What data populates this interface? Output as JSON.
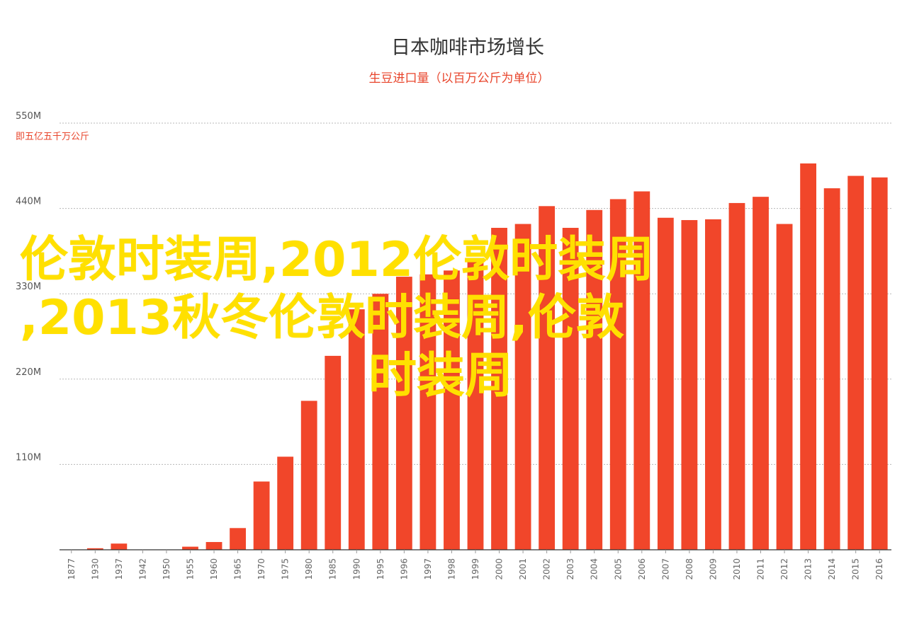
{
  "colors": {
    "bar": "#f1462a",
    "accent_text": "#e8452c",
    "grid": "#b8b8b8",
    "overlay_text": "#ffe000"
  },
  "chart_data": {
    "type": "bar",
    "title": "日本咖啡市场增长",
    "subtitle": "生豆进口量（以百万公斤为单位）",
    "ylabel": "即五亿五千万公斤",
    "ylim": [
      0,
      550
    ],
    "yticks": [
      {
        "value": 110,
        "label": "110M"
      },
      {
        "value": 220,
        "label": "220M"
      },
      {
        "value": 330,
        "label": "330M"
      },
      {
        "value": 440,
        "label": "440M"
      },
      {
        "value": 550,
        "label": "550M"
      }
    ],
    "grid": true,
    "categories": [
      "1877",
      "1930",
      "1937",
      "1942",
      "1950",
      "1955",
      "1960",
      "1965",
      "1970",
      "1975",
      "1980",
      "1985",
      "1990",
      "1995",
      "1996",
      "1997",
      "1998",
      "1999",
      "2000",
      "2001",
      "2002",
      "2003",
      "2004",
      "2005",
      "2006",
      "2007",
      "2008",
      "2009",
      "2010",
      "2011",
      "2012",
      "2013",
      "2014",
      "2015",
      "2016"
    ],
    "values": [
      0,
      2,
      8,
      0,
      0,
      4,
      10,
      28,
      88,
      120,
      192,
      250,
      310,
      330,
      352,
      355,
      360,
      372,
      415,
      420,
      443,
      415,
      438,
      452,
      462,
      428,
      425,
      426,
      447,
      455,
      420,
      498,
      466,
      482,
      480
    ]
  },
  "overlay": {
    "lines": [
      "伦敦时装周,2012伦敦时装周",
      ",2013秋冬伦敦时装周,伦敦",
      "时装周"
    ]
  }
}
